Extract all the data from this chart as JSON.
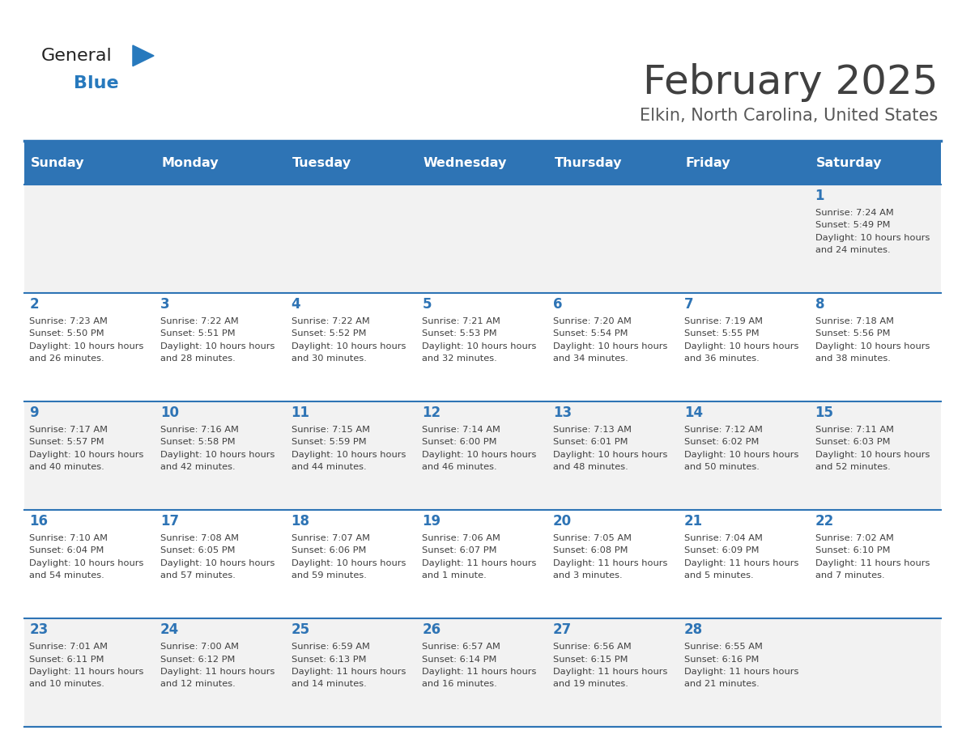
{
  "title": "February 2025",
  "subtitle": "Elkin, North Carolina, United States",
  "days_of_week": [
    "Sunday",
    "Monday",
    "Tuesday",
    "Wednesday",
    "Thursday",
    "Friday",
    "Saturday"
  ],
  "header_bg": "#2E74B5",
  "header_text": "#FFFFFF",
  "day_num_color": "#2E74B5",
  "cell_bg_odd": "#F2F2F2",
  "cell_bg_even": "#FFFFFF",
  "separator_color": "#2E74B5",
  "text_color": "#404040",
  "title_color": "#404040",
  "subtitle_color": "#595959",
  "logo_general_color": "#222222",
  "logo_blue_color": "#2779BD",
  "calendar_data": [
    [
      null,
      null,
      null,
      null,
      null,
      null,
      {
        "day": 1,
        "sunrise": "7:24 AM",
        "sunset": "5:49 PM",
        "daylight": "10 hours and 24 minutes."
      }
    ],
    [
      {
        "day": 2,
        "sunrise": "7:23 AM",
        "sunset": "5:50 PM",
        "daylight": "10 hours and 26 minutes."
      },
      {
        "day": 3,
        "sunrise": "7:22 AM",
        "sunset": "5:51 PM",
        "daylight": "10 hours and 28 minutes."
      },
      {
        "day": 4,
        "sunrise": "7:22 AM",
        "sunset": "5:52 PM",
        "daylight": "10 hours and 30 minutes."
      },
      {
        "day": 5,
        "sunrise": "7:21 AM",
        "sunset": "5:53 PM",
        "daylight": "10 hours and 32 minutes."
      },
      {
        "day": 6,
        "sunrise": "7:20 AM",
        "sunset": "5:54 PM",
        "daylight": "10 hours and 34 minutes."
      },
      {
        "day": 7,
        "sunrise": "7:19 AM",
        "sunset": "5:55 PM",
        "daylight": "10 hours and 36 minutes."
      },
      {
        "day": 8,
        "sunrise": "7:18 AM",
        "sunset": "5:56 PM",
        "daylight": "10 hours and 38 minutes."
      }
    ],
    [
      {
        "day": 9,
        "sunrise": "7:17 AM",
        "sunset": "5:57 PM",
        "daylight": "10 hours and 40 minutes."
      },
      {
        "day": 10,
        "sunrise": "7:16 AM",
        "sunset": "5:58 PM",
        "daylight": "10 hours and 42 minutes."
      },
      {
        "day": 11,
        "sunrise": "7:15 AM",
        "sunset": "5:59 PM",
        "daylight": "10 hours and 44 minutes."
      },
      {
        "day": 12,
        "sunrise": "7:14 AM",
        "sunset": "6:00 PM",
        "daylight": "10 hours and 46 minutes."
      },
      {
        "day": 13,
        "sunrise": "7:13 AM",
        "sunset": "6:01 PM",
        "daylight": "10 hours and 48 minutes."
      },
      {
        "day": 14,
        "sunrise": "7:12 AM",
        "sunset": "6:02 PM",
        "daylight": "10 hours and 50 minutes."
      },
      {
        "day": 15,
        "sunrise": "7:11 AM",
        "sunset": "6:03 PM",
        "daylight": "10 hours and 52 minutes."
      }
    ],
    [
      {
        "day": 16,
        "sunrise": "7:10 AM",
        "sunset": "6:04 PM",
        "daylight": "10 hours and 54 minutes."
      },
      {
        "day": 17,
        "sunrise": "7:08 AM",
        "sunset": "6:05 PM",
        "daylight": "10 hours and 57 minutes."
      },
      {
        "day": 18,
        "sunrise": "7:07 AM",
        "sunset": "6:06 PM",
        "daylight": "10 hours and 59 minutes."
      },
      {
        "day": 19,
        "sunrise": "7:06 AM",
        "sunset": "6:07 PM",
        "daylight": "11 hours and 1 minute."
      },
      {
        "day": 20,
        "sunrise": "7:05 AM",
        "sunset": "6:08 PM",
        "daylight": "11 hours and 3 minutes."
      },
      {
        "day": 21,
        "sunrise": "7:04 AM",
        "sunset": "6:09 PM",
        "daylight": "11 hours and 5 minutes."
      },
      {
        "day": 22,
        "sunrise": "7:02 AM",
        "sunset": "6:10 PM",
        "daylight": "11 hours and 7 minutes."
      }
    ],
    [
      {
        "day": 23,
        "sunrise": "7:01 AM",
        "sunset": "6:11 PM",
        "daylight": "11 hours and 10 minutes."
      },
      {
        "day": 24,
        "sunrise": "7:00 AM",
        "sunset": "6:12 PM",
        "daylight": "11 hours and 12 minutes."
      },
      {
        "day": 25,
        "sunrise": "6:59 AM",
        "sunset": "6:13 PM",
        "daylight": "11 hours and 14 minutes."
      },
      {
        "day": 26,
        "sunrise": "6:57 AM",
        "sunset": "6:14 PM",
        "daylight": "11 hours and 16 minutes."
      },
      {
        "day": 27,
        "sunrise": "6:56 AM",
        "sunset": "6:15 PM",
        "daylight": "11 hours and 19 minutes."
      },
      {
        "day": 28,
        "sunrise": "6:55 AM",
        "sunset": "6:16 PM",
        "daylight": "11 hours and 21 minutes."
      },
      null
    ]
  ]
}
